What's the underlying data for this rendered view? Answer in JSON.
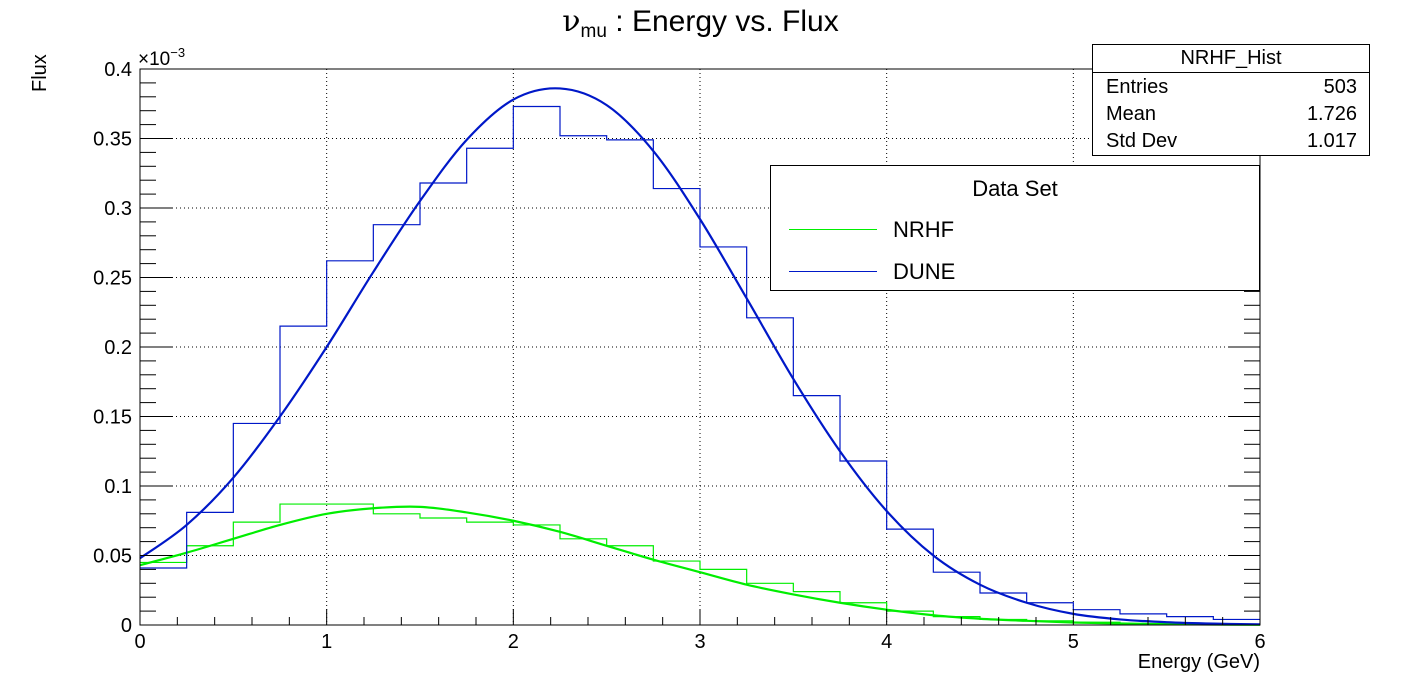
{
  "title": {
    "symbol": "ν",
    "subscript": "mu",
    "text": " : Energy vs. Flux"
  },
  "y_exponent": {
    "base": "×10",
    "power": "−3"
  },
  "stats_box": {
    "name": "NRHF_Hist",
    "rows": [
      {
        "key": "Entries",
        "value": "503"
      },
      {
        "key": "Mean",
        "value": "1.726"
      },
      {
        "key": "Std Dev",
        "value": "1.017"
      }
    ]
  },
  "legend": {
    "header": "Data Set",
    "entries": [
      {
        "label": "NRHF",
        "color": "#00ee00"
      },
      {
        "label": "DUNE",
        "color": "#0018c8"
      }
    ]
  },
  "chart_data": {
    "type": "line",
    "title": "νmu : Energy vs. Flux",
    "xlabel": "Energy (GeV)",
    "ylabel": "Flux",
    "xlim": [
      0,
      6
    ],
    "ylim": [
      0,
      0.4
    ],
    "y_scale_factor": "×10^-3",
    "grid": true,
    "legend_position": "top-right",
    "x_ticks": [
      "0",
      "1",
      "2",
      "3",
      "4",
      "5",
      "6"
    ],
    "y_ticks": [
      "0",
      "0.05",
      "0.1",
      "0.15",
      "0.2",
      "0.25",
      "0.3",
      "0.35",
      "0.4"
    ],
    "bin_edges": [
      0,
      0.25,
      0.5,
      0.75,
      1.0,
      1.25,
      1.5,
      1.75,
      2.0,
      2.25,
      2.5,
      2.75,
      3.0,
      3.25,
      3.5,
      3.75,
      4.0,
      4.25,
      4.5,
      4.75,
      5.0,
      5.25,
      5.5,
      5.75,
      6.0
    ],
    "series": [
      {
        "name": "NRHF",
        "color": "#00ee00",
        "histogram": [
          0.045,
          0.057,
          0.074,
          0.087,
          0.087,
          0.08,
          0.077,
          0.074,
          0.072,
          0.062,
          0.057,
          0.046,
          0.04,
          0.03,
          0.024,
          0.016,
          0.01,
          0.006,
          0.004,
          0.003,
          0.002,
          0.001,
          0.0005,
          0.0003
        ],
        "fit": {
          "x": [
            0,
            0.25,
            0.5,
            0.75,
            1.0,
            1.25,
            1.5,
            1.75,
            2.0,
            2.25,
            2.5,
            2.75,
            3.0,
            3.25,
            3.5,
            3.75,
            4.0,
            4.25,
            4.5,
            4.75,
            5.0,
            5.25,
            5.5,
            5.75,
            6.0
          ],
          "y": [
            0.043,
            0.052,
            0.062,
            0.072,
            0.08,
            0.084,
            0.085,
            0.081,
            0.075,
            0.067,
            0.057,
            0.047,
            0.038,
            0.029,
            0.022,
            0.016,
            0.011,
            0.007,
            0.0045,
            0.003,
            0.0018,
            0.0011,
            0.0006,
            0.0003,
            0.0002
          ]
        }
      },
      {
        "name": "DUNE",
        "color": "#0018c8",
        "histogram": [
          0.041,
          0.081,
          0.145,
          0.215,
          0.262,
          0.288,
          0.318,
          0.343,
          0.373,
          0.352,
          0.349,
          0.314,
          0.272,
          0.221,
          0.165,
          0.118,
          0.069,
          0.038,
          0.023,
          0.016,
          0.011,
          0.008,
          0.006,
          0.004
        ],
        "fit": {
          "x": [
            0,
            0.25,
            0.5,
            0.75,
            1.0,
            1.25,
            1.5,
            1.75,
            2.0,
            2.25,
            2.5,
            2.75,
            3.0,
            3.25,
            3.5,
            3.75,
            4.0,
            4.25,
            4.5,
            4.75,
            5.0,
            5.25,
            5.5,
            5.75,
            6.0
          ],
          "y": [
            0.048,
            0.072,
            0.106,
            0.15,
            0.2,
            0.254,
            0.305,
            0.349,
            0.378,
            0.386,
            0.374,
            0.341,
            0.292,
            0.235,
            0.177,
            0.125,
            0.082,
            0.05,
            0.029,
            0.016,
            0.008,
            0.004,
            0.002,
            0.001,
            0.0005
          ]
        }
      }
    ]
  }
}
